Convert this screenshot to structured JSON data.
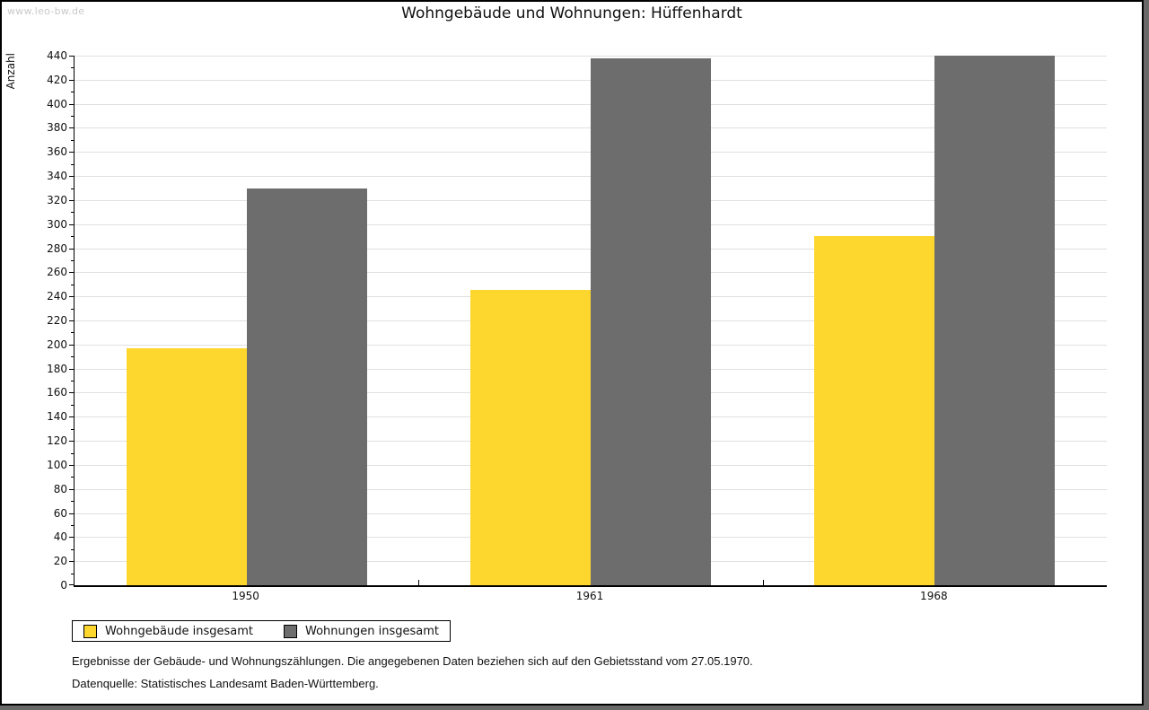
{
  "watermark": "www.leo-bw.de",
  "chart_data": {
    "type": "bar",
    "title": "Wohngebäude und Wohnungen: Hüffenhardt",
    "ylabel": "Anzahl",
    "xlabel": "",
    "categories": [
      "1950",
      "1961",
      "1968"
    ],
    "series": [
      {
        "name": "Wohngebäude insgesamt",
        "color": "#fdd72e",
        "values": [
          197,
          245,
          290
        ]
      },
      {
        "name": "Wohnungen insgesamt",
        "color": "#6d6d6d",
        "values": [
          330,
          438,
          440
        ]
      }
    ],
    "ylim": [
      0,
      440
    ],
    "ytick_step": 20,
    "minor_tick_step": 10,
    "grid": true,
    "grid_color": "#e0e0e0",
    "legend_position": "bottom-left"
  },
  "footnotes": [
    "Ergebnisse der Gebäude- und Wohnungszählungen. Die angegebenen Daten beziehen sich auf den Gebietsstand vom 27.05.1970.",
    "Datenquelle: Statistisches Landesamt Baden-Württemberg."
  ]
}
